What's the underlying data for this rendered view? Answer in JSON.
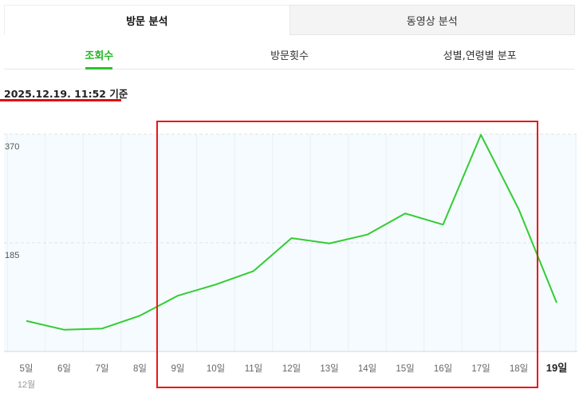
{
  "tabs": [
    {
      "label": "방문 분석",
      "active": true
    },
    {
      "label": "동영상 분석",
      "active": false
    }
  ],
  "subtabs": [
    {
      "label": "조회수",
      "active": true
    },
    {
      "label": "방문횟수",
      "active": false
    },
    {
      "label": "성별,연령별 분포",
      "active": false
    }
  ],
  "timestamp": "2025.12.19. 11:52 기준",
  "colors": {
    "accent": "#2fc12f",
    "line": "#33cc33",
    "annotation": "#f01414",
    "plot_bg": "#f5fbfe"
  },
  "chart_data": {
    "type": "line",
    "categories": [
      "5일",
      "6일",
      "7일",
      "8일",
      "9일",
      "10일",
      "11일",
      "12일",
      "13일",
      "14일",
      "15일",
      "16일",
      "17일",
      "18일",
      "19일"
    ],
    "month_label": "12월",
    "values": [
      52,
      37,
      39,
      61,
      95,
      114,
      137,
      193,
      184,
      199,
      235,
      216,
      369,
      242,
      83
    ],
    "y_ticks": [
      185,
      370
    ],
    "ylim": [
      0,
      370
    ],
    "grid": true,
    "highlight_current": "19일"
  }
}
